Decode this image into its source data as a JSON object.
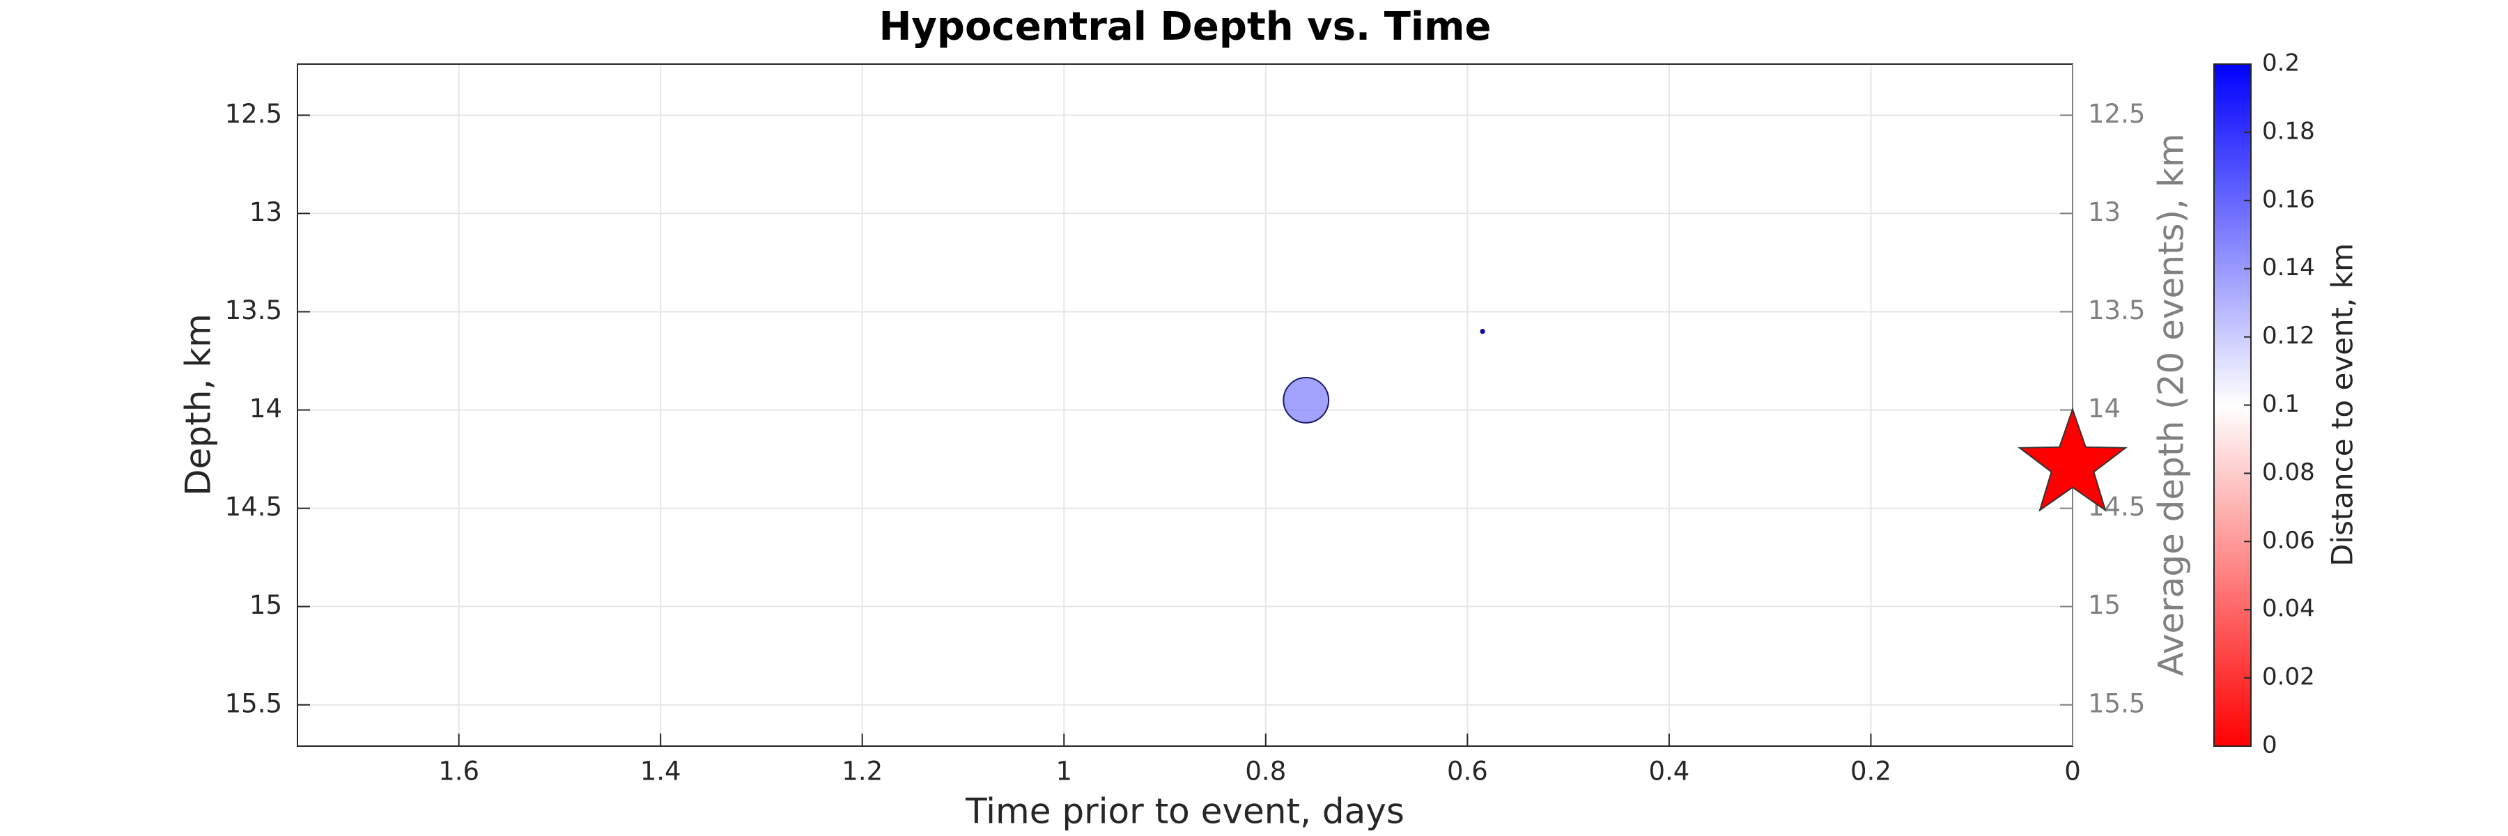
{
  "chart_data": {
    "type": "scatter",
    "title": "Hypocentral Depth vs. Time",
    "xlabel": "Time prior to event, days",
    "ylabel": "Depth, km",
    "y2label": "Average depth (20 events), km",
    "xlim": [
      1.76,
      0
    ],
    "xticks": [
      1.6,
      1.4,
      1.2,
      1,
      0.8,
      0.6,
      0.4,
      0.2,
      0
    ],
    "ylim": [
      12.24,
      15.71
    ],
    "yticks": [
      12.5,
      13,
      13.5,
      14,
      14.5,
      15,
      15.5
    ],
    "y2lim": [
      12.24,
      15.71
    ],
    "y2ticks": [
      12.5,
      13,
      13.5,
      14,
      14.5,
      15,
      15.5
    ],
    "grid": true,
    "events": {
      "x": [
        0.76,
        0.585
      ],
      "y": [
        13.95,
        13.6
      ],
      "distance": [
        0.16,
        0.2
      ],
      "sizes": [
        36,
        3
      ]
    },
    "mainshock": {
      "x": 0,
      "y": 14.28,
      "color": "#ff0000"
    },
    "colorbar": {
      "label": "Distance to event, km",
      "clim": [
        0,
        0.2
      ],
      "ticks": [
        0,
        0.02,
        0.04,
        0.06,
        0.08,
        0.1,
        0.12,
        0.14,
        0.16,
        0.18,
        0.2
      ],
      "colormap": [
        "#ff0000",
        "#ffffff",
        "#0000ff"
      ]
    }
  }
}
